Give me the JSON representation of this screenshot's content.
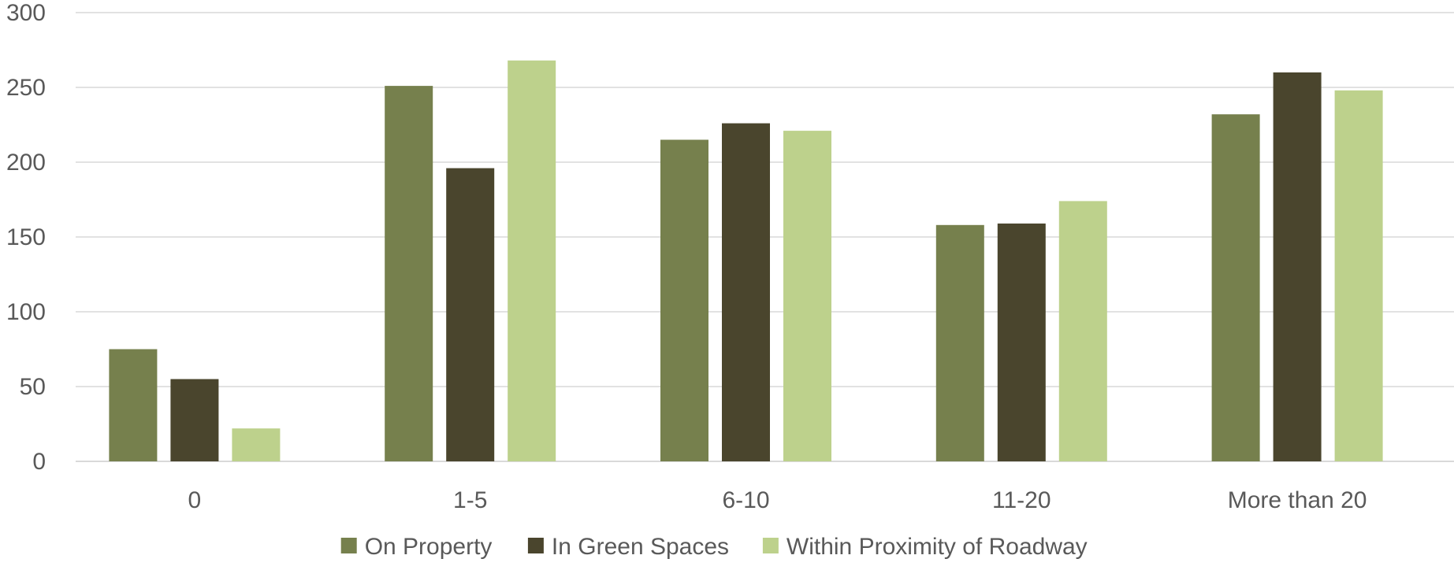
{
  "chart_data": {
    "type": "bar",
    "title": "",
    "xlabel": "",
    "ylabel": "",
    "categories": [
      "0",
      "1-5",
      "6-10",
      "11-20",
      "More than 20"
    ],
    "series": [
      {
        "name": "On Property",
        "color": "#76804d",
        "values": [
          75,
          251,
          215,
          158,
          232
        ]
      },
      {
        "name": "In Green Spaces",
        "color": "#4a452d",
        "values": [
          55,
          196,
          226,
          159,
          260
        ]
      },
      {
        "name": "Within Proximity of Roadway",
        "color": "#bdd18c",
        "values": [
          22,
          268,
          221,
          174,
          248
        ]
      }
    ],
    "ylim": [
      0,
      300
    ],
    "yticks": [
      0,
      50,
      100,
      150,
      200,
      250,
      300
    ],
    "grid": true,
    "legend_position": "bottom"
  }
}
